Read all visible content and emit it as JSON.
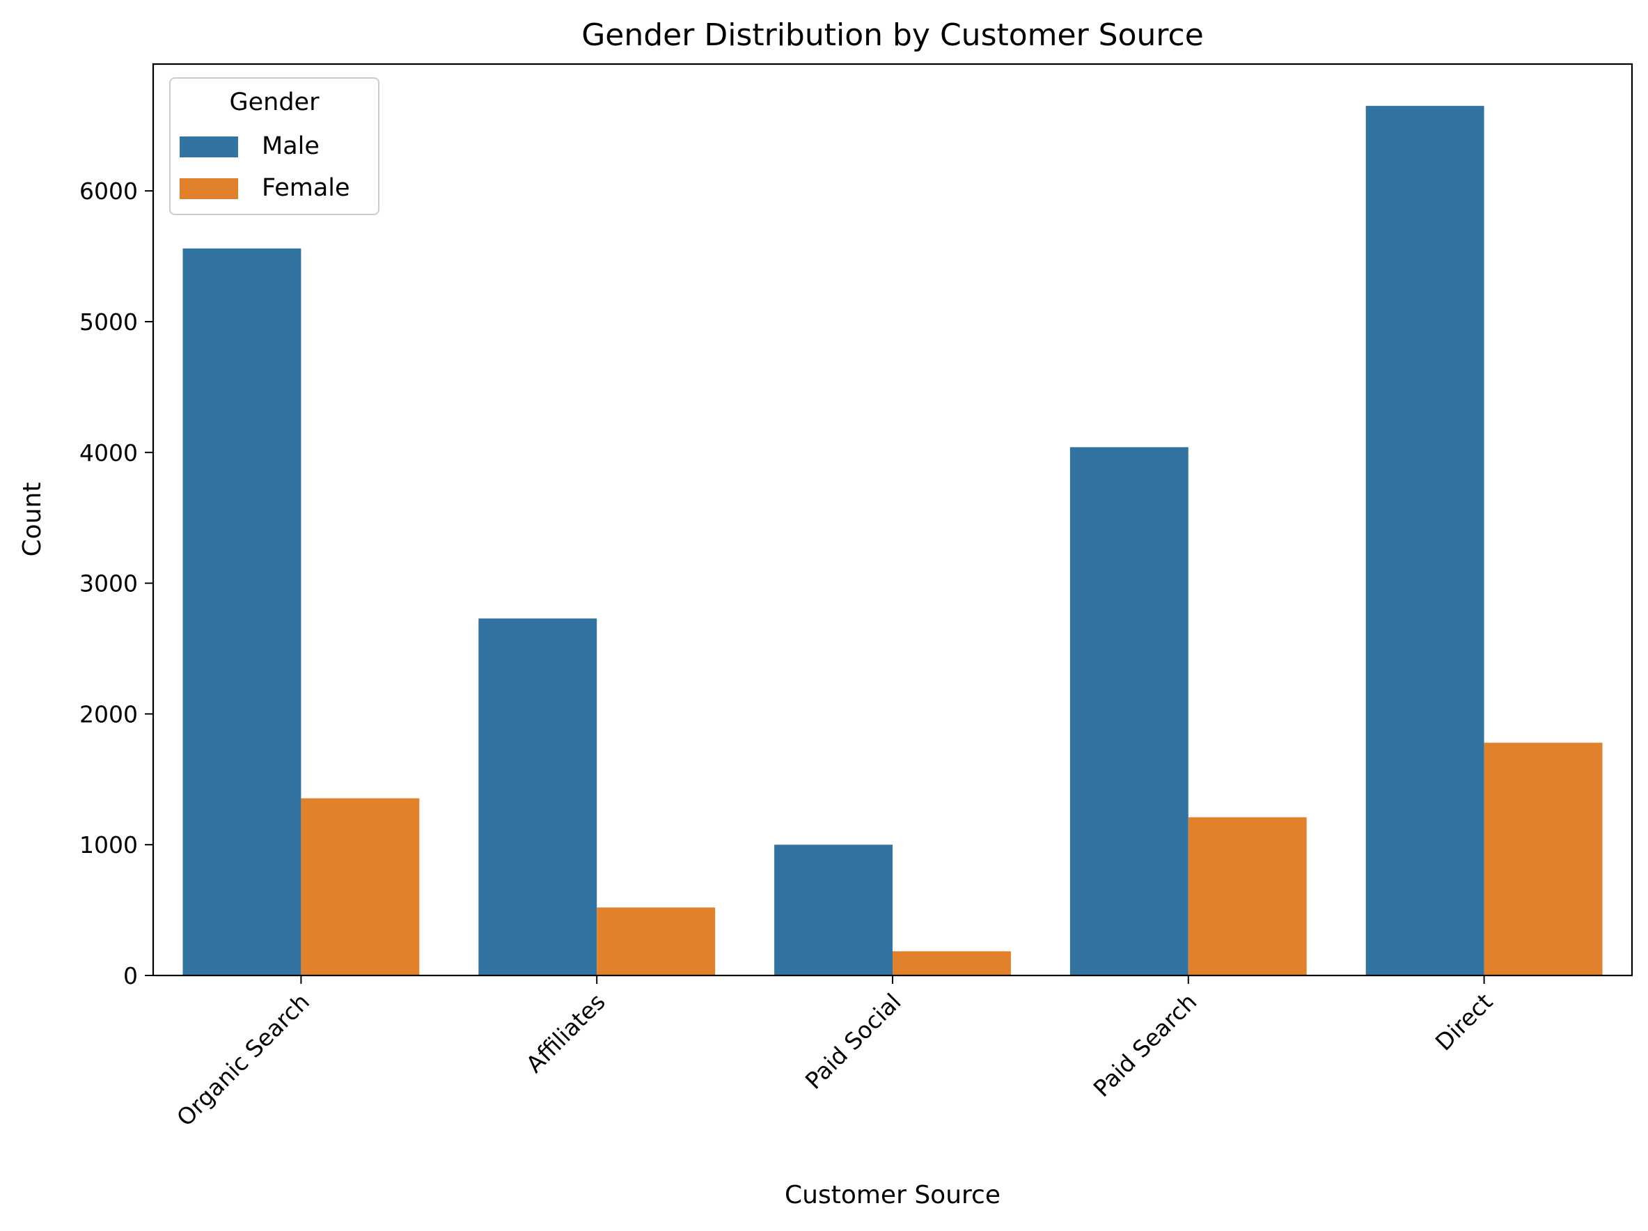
{
  "chart_data": {
    "type": "bar",
    "title": "Gender Distribution by Customer Source",
    "xlabel": "Customer Source",
    "ylabel": "Count",
    "categories": [
      "Organic Search",
      "Affiliates",
      "Paid Social",
      "Paid Search",
      "Direct"
    ],
    "series": [
      {
        "name": "Male",
        "color": "#3274a1",
        "values": [
          5560,
          2730,
          1000,
          4040,
          6650
        ]
      },
      {
        "name": "Female",
        "color": "#e1812c",
        "values": [
          1355,
          520,
          185,
          1210,
          1780
        ]
      }
    ],
    "ylim": [
      0,
      6970
    ],
    "yticks": [
      0,
      1000,
      2000,
      3000,
      4000,
      5000,
      6000
    ],
    "legend": {
      "title": "Gender",
      "position": "top-left"
    },
    "grid": false
  }
}
